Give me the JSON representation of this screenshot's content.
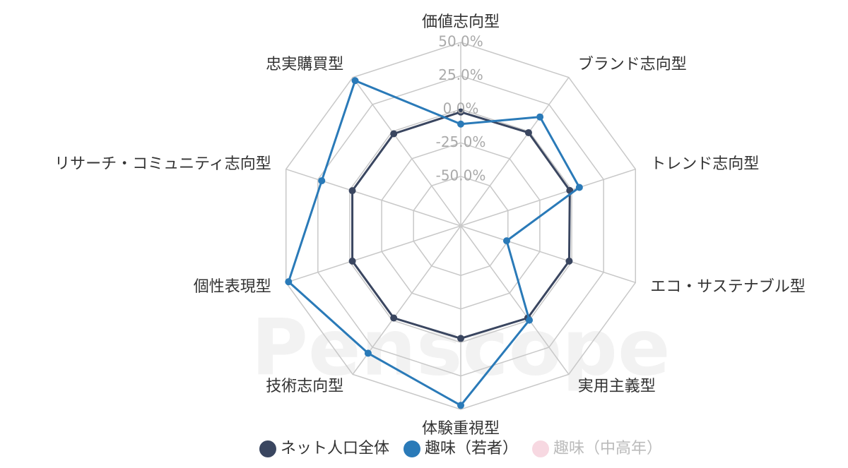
{
  "chart_data": {
    "type": "radar",
    "watermark": "Penscope",
    "categories": [
      "価値志向型",
      "ブランド志向型",
      "トレンド志向型",
      "エコ・サステナブル型",
      "実用主義型",
      "体験重視型",
      "技術志向型",
      "個性表現型",
      "リサーチ・コミュニティ志向型",
      "忠実購買型"
    ],
    "series": [
      {
        "name": "ネット人口全体",
        "color": "#3a4660",
        "values": [
          -2,
          -1,
          -1.5,
          -2,
          -2,
          -3,
          -2,
          -2,
          -2,
          -2
        ]
      },
      {
        "name": "趣味（若者）",
        "color": "#2a7ab8",
        "values": [
          -11,
          13.5,
          6,
          -51,
          0,
          47,
          30.5,
          48,
          22,
          47
        ]
      },
      {
        "name": "趣味（中高年）",
        "color": "#f0b8c8",
        "hidden": true,
        "values": [
          null,
          null,
          null,
          null,
          null,
          null,
          null,
          null,
          null,
          null
        ]
      }
    ],
    "rlim": [
      -87,
      50
    ],
    "rticks": [
      {
        "value": 50,
        "label": "50.0%"
      },
      {
        "value": 25,
        "label": "25.0%"
      },
      {
        "value": 0,
        "label": "0.0%"
      },
      {
        "value": -25,
        "label": "-25.0%"
      },
      {
        "value": -50,
        "label": "-50.0%"
      }
    ],
    "grid": true,
    "legend": "bottom"
  }
}
